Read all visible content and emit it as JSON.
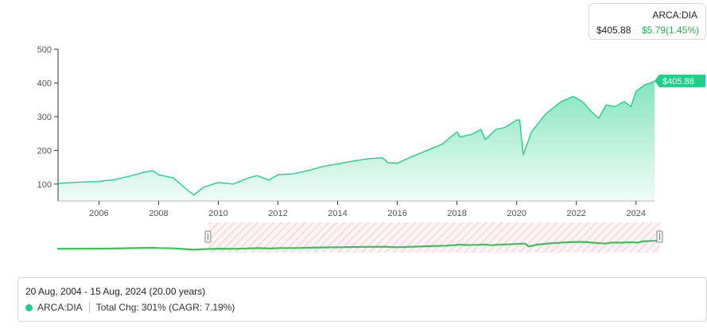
{
  "ticker": {
    "symbol": "ARCA:DIA",
    "price": "$405.88",
    "change": "$5.79(1.45%)"
  },
  "price_badge": "$405.88",
  "summary": {
    "range": "20 Aug, 2004 - 15 Aug, 2024 (20.00 years)",
    "series_name": "ARCA:DIA",
    "total_change": "Total Chg: 301% (CAGR: 7.19%)"
  },
  "colors": {
    "line": "#1fcf8a",
    "fill": "#1fcf8a",
    "navigator_line": "#3dbf5a",
    "badge": "#1fcf8a"
  },
  "chart_data": {
    "type": "area",
    "title": "",
    "xlabel": "",
    "ylabel": "",
    "x_ticks": [
      "2006",
      "2008",
      "2010",
      "2012",
      "2014",
      "2016",
      "2018",
      "2020",
      "2022",
      "2024"
    ],
    "y_ticks": [
      100,
      200,
      300,
      400,
      500
    ],
    "xlim": [
      2004.63,
      2024.62
    ],
    "ylim": [
      50,
      500
    ],
    "grid": false,
    "series": [
      {
        "x": [
          2004.63,
          2005.0,
          2005.5,
          2006.0,
          2006.5,
          2007.0,
          2007.5,
          2007.8,
          2008.0,
          2008.5,
          2008.8,
          2009.0,
          2009.18,
          2009.5,
          2010.0,
          2010.5,
          2011.0,
          2011.3,
          2011.7,
          2012.0,
          2012.5,
          2013.0,
          2013.5,
          2014.0,
          2014.5,
          2015.0,
          2015.5,
          2015.7,
          2016.0,
          2016.5,
          2017.0,
          2017.5,
          2018.0,
          2018.1,
          2018.5,
          2018.8,
          2018.95,
          2019.3,
          2019.6,
          2020.0,
          2020.1,
          2020.22,
          2020.5,
          2020.9,
          2021.0,
          2021.5,
          2021.9,
          2022.2,
          2022.5,
          2022.75,
          2023.0,
          2023.3,
          2023.6,
          2023.83,
          2024.0,
          2024.3,
          2024.5,
          2024.62
        ],
        "y": [
          102,
          104,
          106,
          108,
          113,
          123,
          135,
          140,
          128,
          118,
          95,
          80,
          68,
          90,
          105,
          100,
          118,
          125,
          112,
          128,
          130,
          140,
          152,
          160,
          168,
          175,
          178,
          163,
          162,
          182,
          200,
          218,
          255,
          240,
          248,
          262,
          232,
          262,
          268,
          290,
          290,
          187,
          255,
          300,
          310,
          345,
          360,
          345,
          315,
          295,
          335,
          330,
          345,
          330,
          375,
          395,
          400,
          406
        ]
      }
    ]
  }
}
